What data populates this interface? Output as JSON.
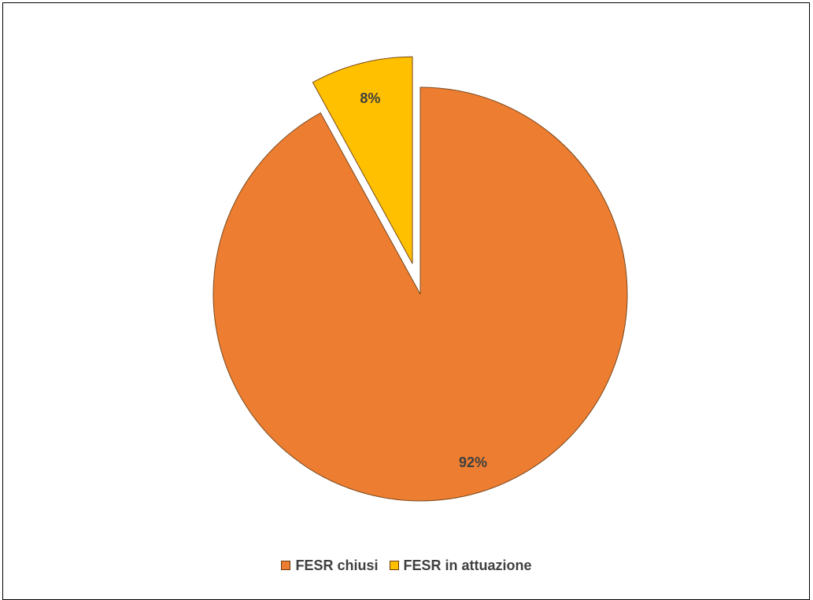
{
  "chart_data": {
    "type": "pie",
    "title": "",
    "slices": [
      {
        "name": "FESR chiusi",
        "value": 92,
        "label": "92%",
        "color": "#ED7D31",
        "exploded": false
      },
      {
        "name": "FESR in attuazione",
        "value": 8,
        "label": "8%",
        "color": "#FFC000",
        "exploded": true
      }
    ],
    "legend": {
      "placement": "bottom",
      "entries": [
        "FESR chiusi",
        "FESR in attuazione"
      ]
    },
    "slice_outline_color": "#7a4a1e"
  }
}
